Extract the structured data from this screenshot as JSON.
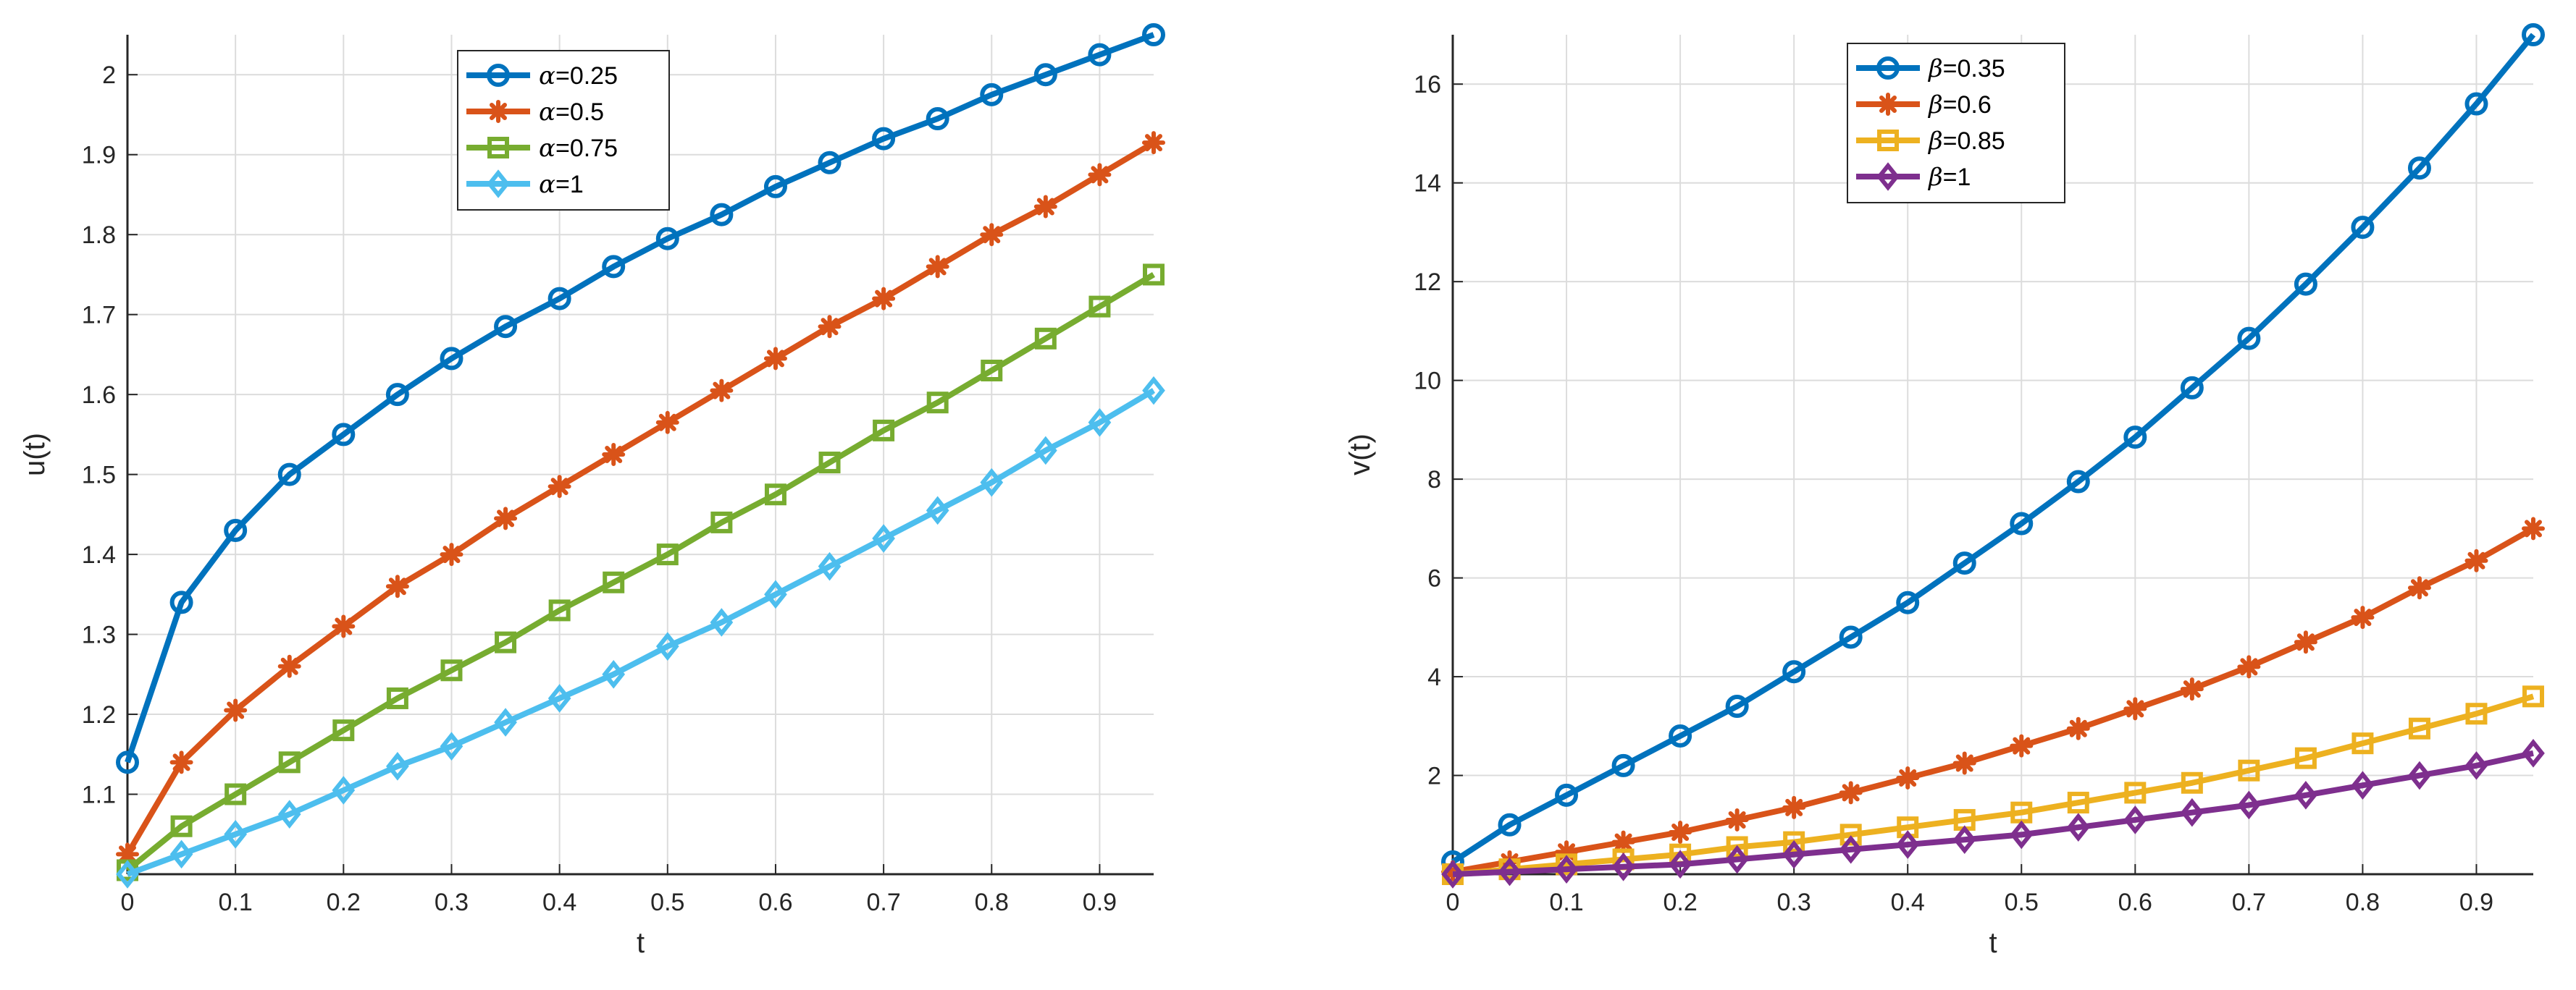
{
  "chart_data": [
    {
      "type": "line",
      "xlabel": "t",
      "ylabel": "u(t)",
      "xlim": [
        0,
        0.95
      ],
      "ylim": [
        1.0,
        2.05
      ],
      "xticks": [
        0,
        0.1,
        0.2,
        0.3,
        0.4,
        0.5,
        0.6,
        0.7,
        0.8,
        0.9
      ],
      "xtick_labels": [
        "0",
        "0.1",
        "0.2",
        "0.3",
        "0.4",
        "0.5",
        "0.6",
        "0.7",
        "0.8",
        "0.9"
      ],
      "yticks": [
        1.1,
        1.2,
        1.3,
        1.4,
        1.5,
        1.6,
        1.7,
        1.8,
        1.9,
        2
      ],
      "ytick_labels": [
        "1.1",
        "1.2",
        "1.3",
        "1.4",
        "1.5",
        "1.6",
        "1.7",
        "1.8",
        "1.9",
        "2"
      ],
      "grid": true,
      "legend_position": "top-center",
      "x": [
        0,
        0.05,
        0.1,
        0.15,
        0.2,
        0.25,
        0.3,
        0.35,
        0.4,
        0.45,
        0.5,
        0.55,
        0.6,
        0.65,
        0.7,
        0.75,
        0.8,
        0.85,
        0.9,
        0.95
      ],
      "series": [
        {
          "name": "α=0.25",
          "legend_symbol": "α",
          "legend_value": "=0.25",
          "color": "#0072BD",
          "marker": "circle",
          "values": [
            1.14,
            1.34,
            1.43,
            1.5,
            1.55,
            1.6,
            1.645,
            1.685,
            1.72,
            1.76,
            1.795,
            1.825,
            1.86,
            1.89,
            1.92,
            1.945,
            1.975,
            2.0,
            2.025,
            2.05
          ]
        },
        {
          "name": "α=0.5",
          "legend_symbol": "α",
          "legend_value": "=0.5",
          "color": "#D95319",
          "marker": "asterisk",
          "values": [
            1.025,
            1.14,
            1.205,
            1.26,
            1.31,
            1.36,
            1.4,
            1.445,
            1.485,
            1.525,
            1.565,
            1.605,
            1.645,
            1.685,
            1.72,
            1.76,
            1.8,
            1.835,
            1.875,
            1.915
          ]
        },
        {
          "name": "α=0.75",
          "legend_symbol": "α",
          "legend_value": "=0.75",
          "color": "#77AC30",
          "marker": "square",
          "values": [
            1.005,
            1.06,
            1.1,
            1.14,
            1.18,
            1.22,
            1.255,
            1.29,
            1.33,
            1.365,
            1.4,
            1.44,
            1.475,
            1.515,
            1.555,
            1.59,
            1.63,
            1.67,
            1.71,
            1.75
          ]
        },
        {
          "name": "α=1",
          "legend_symbol": "α",
          "legend_value": "=1",
          "color": "#4DBEEE",
          "marker": "diamond",
          "values": [
            1.0,
            1.025,
            1.05,
            1.075,
            1.105,
            1.135,
            1.16,
            1.19,
            1.22,
            1.25,
            1.285,
            1.315,
            1.35,
            1.385,
            1.42,
            1.455,
            1.49,
            1.53,
            1.565,
            1.605
          ]
        }
      ]
    },
    {
      "type": "line",
      "xlabel": "t",
      "ylabel": "v(t)",
      "xlim": [
        0,
        0.95
      ],
      "ylim": [
        0,
        17
      ],
      "xticks": [
        0,
        0.1,
        0.2,
        0.3,
        0.4,
        0.5,
        0.6,
        0.7,
        0.8,
        0.9
      ],
      "xtick_labels": [
        "0",
        "0.1",
        "0.2",
        "0.3",
        "0.4",
        "0.5",
        "0.6",
        "0.7",
        "0.8",
        "0.9"
      ],
      "yticks": [
        2,
        4,
        6,
        8,
        10,
        12,
        14,
        16
      ],
      "ytick_labels": [
        "2",
        "4",
        "6",
        "8",
        "10",
        "12",
        "14",
        "16"
      ],
      "grid": true,
      "legend_position": "top-left",
      "x": [
        0,
        0.05,
        0.1,
        0.15,
        0.2,
        0.25,
        0.3,
        0.35,
        0.4,
        0.45,
        0.5,
        0.55,
        0.6,
        0.65,
        0.7,
        0.75,
        0.8,
        0.85,
        0.9,
        0.95
      ],
      "series": [
        {
          "name": "β=0.35",
          "legend_symbol": "β",
          "legend_value": "=0.35",
          "color": "#0072BD",
          "marker": "circle",
          "values": [
            0.25,
            1.0,
            1.6,
            2.2,
            2.8,
            3.4,
            4.1,
            4.8,
            5.5,
            6.3,
            7.1,
            7.95,
            8.85,
            9.85,
            10.85,
            11.95,
            13.1,
            14.3,
            15.6,
            17.0
          ]
        },
        {
          "name": "β=0.6",
          "legend_symbol": "β",
          "legend_value": "=0.6",
          "color": "#D95319",
          "marker": "asterisk",
          "values": [
            0.05,
            0.25,
            0.45,
            0.65,
            0.85,
            1.1,
            1.35,
            1.65,
            1.95,
            2.25,
            2.6,
            2.95,
            3.35,
            3.75,
            4.2,
            4.7,
            5.2,
            5.8,
            6.35,
            7.0
          ]
        },
        {
          "name": "β=0.85",
          "legend_symbol": "β",
          "legend_value": "=0.85",
          "color": "#EDB120",
          "marker": "square",
          "values": [
            0.0,
            0.1,
            0.2,
            0.3,
            0.4,
            0.55,
            0.65,
            0.8,
            0.95,
            1.1,
            1.25,
            1.45,
            1.65,
            1.85,
            2.1,
            2.35,
            2.65,
            2.95,
            3.25,
            3.6
          ]
        },
        {
          "name": "β=1",
          "legend_symbol": "β",
          "legend_value": "=1",
          "color": "#7E2F8E",
          "marker": "diamond",
          "values": [
            0.0,
            0.05,
            0.1,
            0.15,
            0.2,
            0.3,
            0.4,
            0.5,
            0.6,
            0.7,
            0.8,
            0.95,
            1.1,
            1.25,
            1.4,
            1.6,
            1.8,
            2.0,
            2.2,
            2.45
          ]
        }
      ]
    }
  ]
}
